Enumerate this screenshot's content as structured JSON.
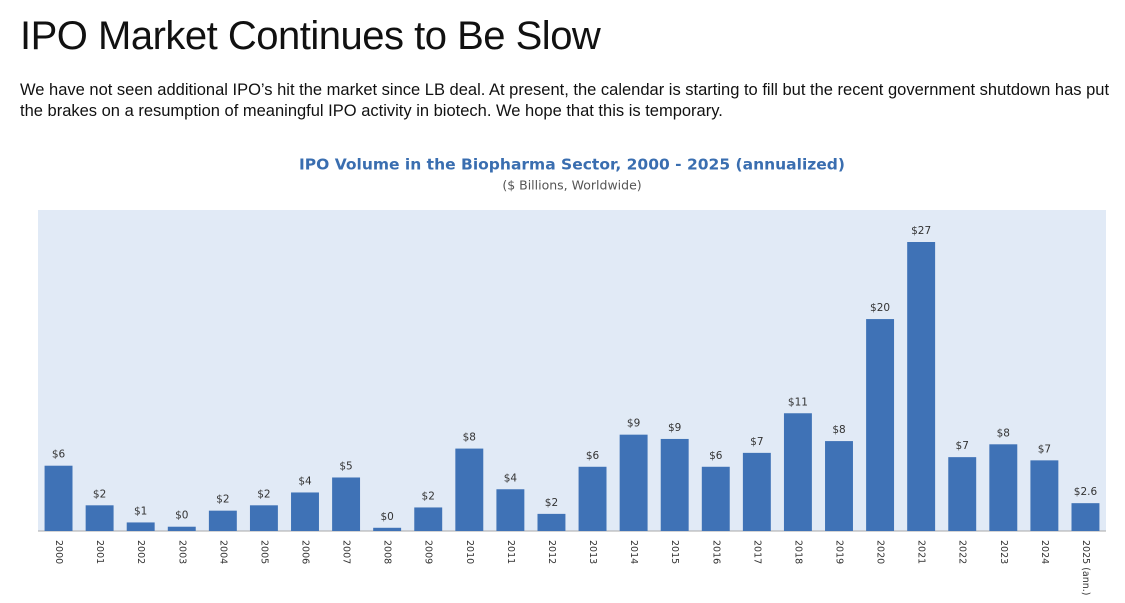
{
  "slide": {
    "title": "IPO Market Continues to Be Slow",
    "text": "We have not seen additional IPO’s hit the market since LB deal. At present, the calendar is starting to fill but the recent government shutdown has put the brakes on a resumption of meaningful IPO activity in biotech. We hope that this is temporary."
  },
  "chart_data": {
    "type": "bar",
    "title": "IPO Volume in the Biopharma Sector, 2000 - 2025 (annualized)",
    "subtitle": "($ Billions, Worldwide)",
    "categories": [
      "2000",
      "2001",
      "2002",
      "2003",
      "2004",
      "2005",
      "2006",
      "2007",
      "2008",
      "2009",
      "2010",
      "2011",
      "2012",
      "2013",
      "2014",
      "2015",
      "2016",
      "2017",
      "2018",
      "2019",
      "2020",
      "2021",
      "2022",
      "2023",
      "2024",
      "2025 (ann.)"
    ],
    "values": [
      6.1,
      2.4,
      0.8,
      0.4,
      1.9,
      2.4,
      3.6,
      5.0,
      0.3,
      2.2,
      7.7,
      3.9,
      1.6,
      6.0,
      9.0,
      8.6,
      6.0,
      7.3,
      11.0,
      8.4,
      19.8,
      27.0,
      6.9,
      8.1,
      6.6,
      2.6
    ],
    "value_labels": [
      "$6",
      "$2",
      "$1",
      "$0",
      "$2",
      "$2",
      "$4",
      "$5",
      "$0",
      "$2",
      "$8",
      "$4",
      "$2",
      "$6",
      "$9",
      "$9",
      "$6",
      "$7",
      "$11",
      "$8",
      "$20",
      "$27",
      "$7",
      "$8",
      "$7",
      "$2.6"
    ],
    "color": "#3f72b6"
  }
}
